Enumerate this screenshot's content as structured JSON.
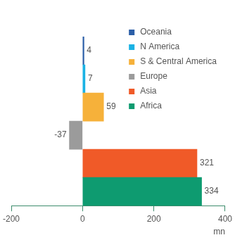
{
  "chart_data": {
    "type": "bar",
    "orientation": "horizontal",
    "categories": [
      "Oceania",
      "N America",
      "S & Central America",
      "Europe",
      "Asia",
      "Africa"
    ],
    "values": [
      4,
      7,
      59,
      -37,
      321,
      334
    ],
    "colors": [
      "#2b5ea7",
      "#1ab2e4",
      "#f6b13a",
      "#9b9b9b",
      "#f05a28",
      "#0e9b70"
    ],
    "x_label": "mn",
    "xlim": [
      -200,
      400
    ],
    "xticks": [
      -200,
      0,
      200,
      400
    ],
    "legend": "upper right",
    "data_labels": true,
    "tick_labels": "x",
    "grid": false
  }
}
